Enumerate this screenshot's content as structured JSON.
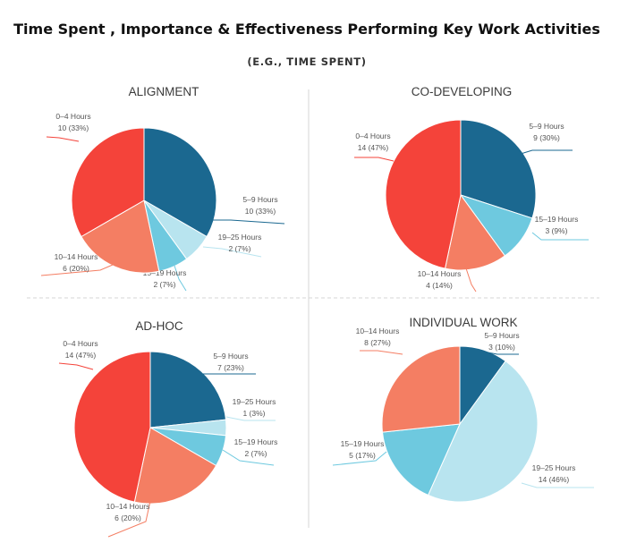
{
  "title": "Time Spent , Importance & Effectiveness Performing  Key Work Activities",
  "subtitle": "(E.G., TIME SPENT)",
  "chart_data": [
    {
      "type": "pie",
      "title": "ALIGNMENT",
      "slices": [
        {
          "label": "5–9 Hours",
          "value": "10 (33%)",
          "count": 10,
          "percent": 33,
          "color": "#1b6890"
        },
        {
          "label": "19–25 Hours",
          "value": "2 (7%)",
          "count": 2,
          "percent": 7,
          "color": "#b8e4ef"
        },
        {
          "label": "15–19 Hours",
          "value": "2 (7%)",
          "count": 2,
          "percent": 7,
          "color": "#6ec9df"
        },
        {
          "label": "10–14 Hours",
          "value": "6 (20%)",
          "count": 6,
          "percent": 20,
          "color": "#f47e63"
        },
        {
          "label": "0–4 Hours",
          "value": "10 (33%)",
          "count": 10,
          "percent": 33,
          "color": "#f4433a"
        }
      ]
    },
    {
      "type": "pie",
      "title": "CO-DEVELOPING",
      "slices": [
        {
          "label": "5–9 Hours",
          "value": "9 (30%)",
          "count": 9,
          "percent": 30,
          "color": "#1b6890"
        },
        {
          "label": "15–19 Hours",
          "value": "3 (9%)",
          "count": 3,
          "percent": 9,
          "color": "#6ec9df"
        },
        {
          "label": "10–14 Hours",
          "value": "4 (14%)",
          "count": 4,
          "percent": 14,
          "color": "#f47e63"
        },
        {
          "label": "0–4 Hours",
          "value": "14 (47%)",
          "count": 14,
          "percent": 47,
          "color": "#f4433a"
        }
      ]
    },
    {
      "type": "pie",
      "title": "AD-HOC",
      "slices": [
        {
          "label": "5–9 Hours",
          "value": "7 (23%)",
          "count": 7,
          "percent": 23,
          "color": "#1b6890"
        },
        {
          "label": "19–25 Hours",
          "value": "1 (3%)",
          "count": 1,
          "percent": 3,
          "color": "#b8e4ef"
        },
        {
          "label": "15–19 Hours",
          "value": "2 (7%)",
          "count": 2,
          "percent": 7,
          "color": "#6ec9df"
        },
        {
          "label": "10–14 Hours",
          "value": "6 (20%)",
          "count": 6,
          "percent": 20,
          "color": "#f47e63"
        },
        {
          "label": "0–4 Hours",
          "value": "14 (47%)",
          "count": 14,
          "percent": 47,
          "color": "#f4433a"
        }
      ]
    },
    {
      "type": "pie",
      "title": "INDIVIDUAL WORK",
      "slices": [
        {
          "label": "5–9 Hours",
          "value": "3 (10%)",
          "count": 3,
          "percent": 10,
          "color": "#1b6890"
        },
        {
          "label": "19–25 Hours",
          "value": "14 (46%)",
          "count": 14,
          "percent": 46,
          "color": "#b8e4ef"
        },
        {
          "label": "15–19 Hours",
          "value": "5 (17%)",
          "count": 5,
          "percent": 17,
          "color": "#6ec9df"
        },
        {
          "label": "10–14 Hours",
          "value": "8 (27%)",
          "count": 8,
          "percent": 27,
          "color": "#f47e63"
        }
      ]
    }
  ]
}
